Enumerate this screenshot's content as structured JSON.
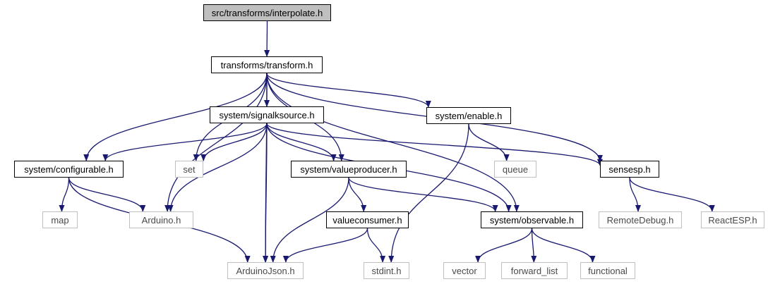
{
  "colors": {
    "edge": "#191970",
    "root_fill": "#bfbfbf",
    "external_border": "#bfbfbf"
  },
  "nodes": {
    "interpolate": "src/transforms/interpolate.h",
    "transform": "transforms/transform.h",
    "signalksource": "system/signalksource.h",
    "enable": "system/enable.h",
    "configurable": "system/configurable.h",
    "set": "set",
    "valueproducer": "system/valueproducer.h",
    "queue": "queue",
    "sensesp": "sensesp.h",
    "map": "map",
    "arduino": "Arduino.h",
    "valueconsumer": "valueconsumer.h",
    "observable": "system/observable.h",
    "remotedebug": "RemoteDebug.h",
    "reactesp": "ReactESP.h",
    "arduinojson": "ArduinoJson.h",
    "stdint": "stdint.h",
    "vector": "vector",
    "forward_list": "forward_list",
    "functional": "functional"
  },
  "edges": [
    [
      "interpolate",
      "transform"
    ],
    [
      "transform",
      "signalksource"
    ],
    [
      "transform",
      "enable"
    ],
    [
      "transform",
      "configurable"
    ],
    [
      "transform",
      "set"
    ],
    [
      "transform",
      "arduino"
    ],
    [
      "transform",
      "arduinojson"
    ],
    [
      "transform",
      "valueproducer"
    ],
    [
      "transform",
      "observable"
    ],
    [
      "transform",
      "sensesp"
    ],
    [
      "signalksource",
      "configurable"
    ],
    [
      "signalksource",
      "set"
    ],
    [
      "signalksource",
      "arduino"
    ],
    [
      "signalksource",
      "arduinojson"
    ],
    [
      "signalksource",
      "valueproducer"
    ],
    [
      "signalksource",
      "observable"
    ],
    [
      "signalksource",
      "sensesp"
    ],
    [
      "enable",
      "queue"
    ],
    [
      "enable",
      "stdint"
    ],
    [
      "configurable",
      "map"
    ],
    [
      "configurable",
      "arduino"
    ],
    [
      "configurable",
      "arduinojson"
    ],
    [
      "valueproducer",
      "valueconsumer"
    ],
    [
      "valueproducer",
      "observable"
    ],
    [
      "valueproducer",
      "arduinojson"
    ],
    [
      "valueconsumer",
      "arduinojson"
    ],
    [
      "valueconsumer",
      "stdint"
    ],
    [
      "observable",
      "vector"
    ],
    [
      "observable",
      "forward_list"
    ],
    [
      "observable",
      "functional"
    ],
    [
      "sensesp",
      "remotedebug"
    ],
    [
      "sensesp",
      "reactesp"
    ]
  ]
}
